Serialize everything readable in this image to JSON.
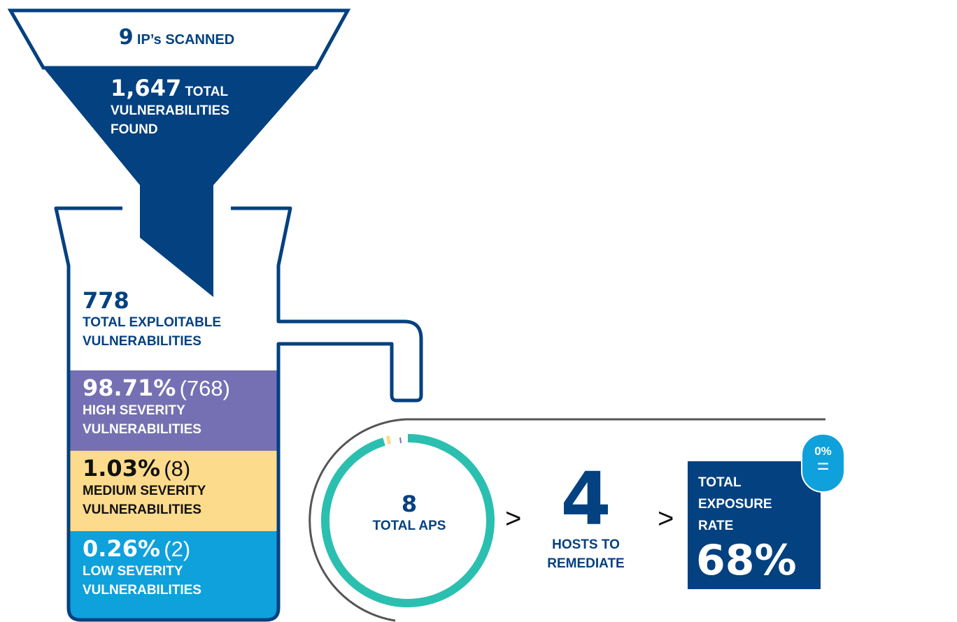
{
  "funnel": {
    "top": {
      "value": "9",
      "label": "IP’s SCANNED"
    },
    "middle": {
      "value": "1,647",
      "label": "TOTAL VULNERABILITIES FOUND"
    }
  },
  "beaker": {
    "exploitable": {
      "value": "778",
      "label": "TOTAL EXPLOITABLE VULNERABILITIES"
    },
    "severities": [
      {
        "percent": "98.71%",
        "count": "(768)",
        "label": "HIGH SEVERITY VULNERABILITIES"
      },
      {
        "percent": "1.03%",
        "count": "(8)",
        "label": "MEDIUM SEVERITY VULNERABILITIES"
      },
      {
        "percent": "0.26%",
        "count": "(2)",
        "label": "LOW SEVERITY VULNERABILITIES"
      }
    ]
  },
  "summary": {
    "total_aps": {
      "value": "8",
      "label": "TOTAL APS"
    },
    "separators": [
      ">",
      ">"
    ],
    "hosts": {
      "value": "4",
      "label": "HOSTS TO REMEDIATE"
    },
    "exposure": {
      "label": "TOTAL EXPOSURE RATE",
      "value": "68%"
    },
    "badge": {
      "value": "0%",
      "symbol": "="
    }
  }
}
